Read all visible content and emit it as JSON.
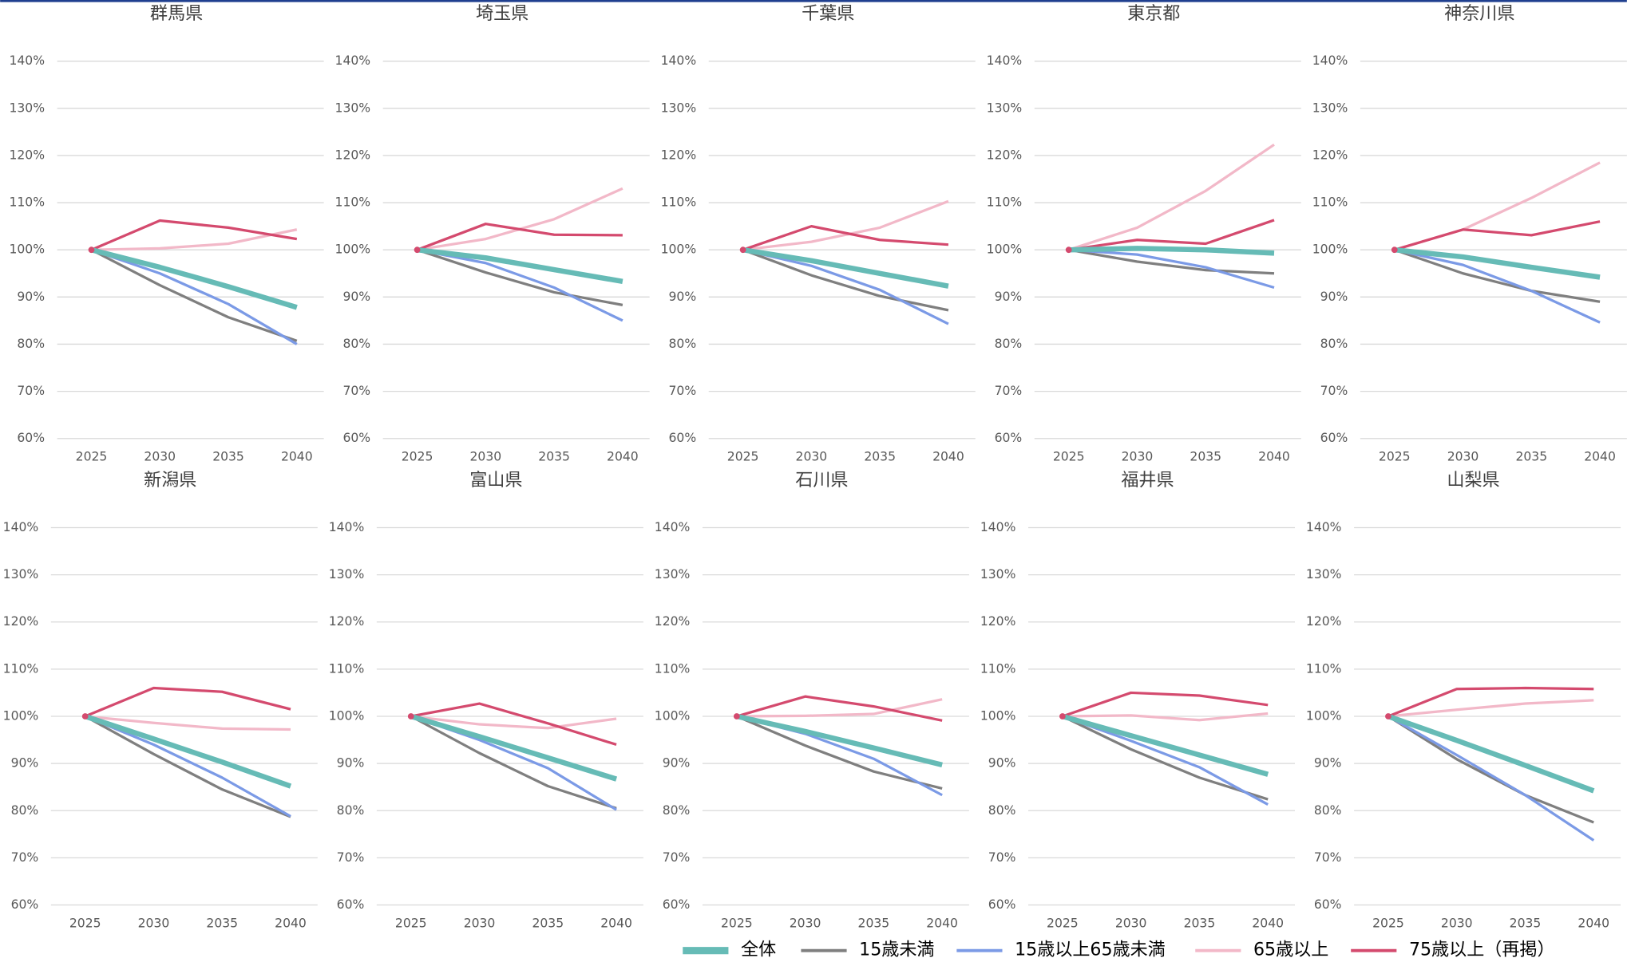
{
  "chart_data": [
    {
      "type": "line",
      "title": "群馬県",
      "categories": [
        "2025",
        "2030",
        "2035",
        "2040"
      ],
      "ylim": [
        60,
        140
      ],
      "yticks": [
        {
          "value": 60,
          "label": "60%"
        },
        {
          "value": 70,
          "label": "70%"
        },
        {
          "value": 80,
          "label": "80%"
        },
        {
          "value": 90,
          "label": "90%"
        },
        {
          "value": 100,
          "label": "100%"
        },
        {
          "value": 110,
          "label": "110%"
        },
        {
          "value": 120,
          "label": "120%"
        },
        {
          "value": 130,
          "label": "130%"
        },
        {
          "value": 140,
          "label": "140%"
        }
      ],
      "grid": true,
      "series": [
        {
          "name": "全体",
          "color": "#66bbb6",
          "values": [
            100,
            96.3,
            92.2,
            87.8
          ]
        },
        {
          "name": "15歳未満",
          "color": "#7f7f7f",
          "values": [
            100,
            92.5,
            85.7,
            80.7
          ]
        },
        {
          "name": "15歳以上65歳未満",
          "color": "#7b9ae6",
          "values": [
            100,
            95,
            88.5,
            80
          ]
        },
        {
          "name": "65歳以上",
          "color": "#f2b8c8",
          "values": [
            100,
            100.3,
            101.3,
            104.3
          ]
        },
        {
          "name": "75歳以上（再掲）",
          "color": "#d44a6e",
          "values": [
            100,
            106.2,
            104.7,
            102.3
          ]
        }
      ]
    },
    {
      "type": "line",
      "title": "埼玉県",
      "categories": [
        "2025",
        "2030",
        "2035",
        "2040"
      ],
      "ylim": [
        60,
        140
      ],
      "yticks": [
        {
          "value": 60,
          "label": "60%"
        },
        {
          "value": 70,
          "label": "70%"
        },
        {
          "value": 80,
          "label": "80%"
        },
        {
          "value": 90,
          "label": "90%"
        },
        {
          "value": 100,
          "label": "100%"
        },
        {
          "value": 110,
          "label": "110%"
        },
        {
          "value": 120,
          "label": "120%"
        },
        {
          "value": 130,
          "label": "130%"
        },
        {
          "value": 140,
          "label": "140%"
        }
      ],
      "grid": true,
      "series": [
        {
          "name": "全体",
          "color": "#66bbb6",
          "values": [
            100,
            98.3,
            95.8,
            93.3
          ]
        },
        {
          "name": "15歳未満",
          "color": "#7f7f7f",
          "values": [
            100,
            95.2,
            91,
            88.3
          ]
        },
        {
          "name": "15歳以上65歳未満",
          "color": "#7b9ae6",
          "values": [
            100,
            97.2,
            92,
            85
          ]
        },
        {
          "name": "65歳以上",
          "color": "#f2b8c8",
          "values": [
            100,
            102.3,
            106.5,
            113
          ]
        },
        {
          "name": "75歳以上（再掲）",
          "color": "#d44a6e",
          "values": [
            100,
            105.5,
            103.2,
            103.1
          ]
        }
      ]
    },
    {
      "type": "line",
      "title": "千葉県",
      "categories": [
        "2025",
        "2030",
        "2035",
        "2040"
      ],
      "ylim": [
        60,
        140
      ],
      "yticks": [
        {
          "value": 60,
          "label": "60%"
        },
        {
          "value": 70,
          "label": "70%"
        },
        {
          "value": 80,
          "label": "80%"
        },
        {
          "value": 90,
          "label": "90%"
        },
        {
          "value": 100,
          "label": "100%"
        },
        {
          "value": 110,
          "label": "110%"
        },
        {
          "value": 120,
          "label": "120%"
        },
        {
          "value": 130,
          "label": "130%"
        },
        {
          "value": 140,
          "label": "140%"
        }
      ],
      "grid": true,
      "series": [
        {
          "name": "全体",
          "color": "#66bbb6",
          "values": [
            100,
            97.7,
            95,
            92.3
          ]
        },
        {
          "name": "15歳未満",
          "color": "#7f7f7f",
          "values": [
            100,
            94.6,
            90.2,
            87.2
          ]
        },
        {
          "name": "15歳以上65歳未満",
          "color": "#7b9ae6",
          "values": [
            100,
            96.6,
            91.5,
            84.3
          ]
        },
        {
          "name": "65歳以上",
          "color": "#f2b8c8",
          "values": [
            100,
            101.7,
            104.7,
            110.3
          ]
        },
        {
          "name": "75歳以上（再掲）",
          "color": "#d44a6e",
          "values": [
            100,
            105,
            102.1,
            101.1
          ]
        }
      ]
    },
    {
      "type": "line",
      "title": "東京都",
      "categories": [
        "2025",
        "2030",
        "2035",
        "2040"
      ],
      "ylim": [
        60,
        140
      ],
      "yticks": [
        {
          "value": 60,
          "label": "60%"
        },
        {
          "value": 70,
          "label": "70%"
        },
        {
          "value": 80,
          "label": "80%"
        },
        {
          "value": 90,
          "label": "90%"
        },
        {
          "value": 100,
          "label": "100%"
        },
        {
          "value": 110,
          "label": "110%"
        },
        {
          "value": 120,
          "label": "120%"
        },
        {
          "value": 130,
          "label": "130%"
        },
        {
          "value": 140,
          "label": "140%"
        }
      ],
      "grid": true,
      "series": [
        {
          "name": "全体",
          "color": "#66bbb6",
          "values": [
            100,
            100.3,
            100,
            99.3
          ]
        },
        {
          "name": "15歳未満",
          "color": "#7f7f7f",
          "values": [
            100,
            97.5,
            95.7,
            95
          ]
        },
        {
          "name": "15歳以上65歳未満",
          "color": "#7b9ae6",
          "values": [
            100,
            99,
            96.3,
            92
          ]
        },
        {
          "name": "65歳以上",
          "color": "#f2b8c8",
          "values": [
            100,
            104.7,
            112.5,
            122.3
          ]
        },
        {
          "name": "75歳以上（再掲）",
          "color": "#d44a6e",
          "values": [
            100,
            102.1,
            101.3,
            106.3
          ]
        }
      ]
    },
    {
      "type": "line",
      "title": "神奈川県",
      "categories": [
        "2025",
        "2030",
        "2035",
        "2040"
      ],
      "ylim": [
        60,
        140
      ],
      "yticks": [
        {
          "value": 60,
          "label": "60%"
        },
        {
          "value": 70,
          "label": "70%"
        },
        {
          "value": 80,
          "label": "80%"
        },
        {
          "value": 90,
          "label": "90%"
        },
        {
          "value": 100,
          "label": "100%"
        },
        {
          "value": 110,
          "label": "110%"
        },
        {
          "value": 120,
          "label": "120%"
        },
        {
          "value": 130,
          "label": "130%"
        },
        {
          "value": 140,
          "label": "140%"
        }
      ],
      "grid": true,
      "series": [
        {
          "name": "全体",
          "color": "#66bbb6",
          "values": [
            100,
            98.5,
            96.3,
            94.2
          ]
        },
        {
          "name": "15歳未満",
          "color": "#7f7f7f",
          "values": [
            100,
            95,
            91.3,
            89
          ]
        },
        {
          "name": "15歳以上65歳未満",
          "color": "#7b9ae6",
          "values": [
            100,
            96.8,
            91.3,
            84.6
          ]
        },
        {
          "name": "65歳以上",
          "color": "#f2b8c8",
          "values": [
            100,
            104.3,
            111,
            118.5
          ]
        },
        {
          "name": "75歳以上（再掲）",
          "color": "#d44a6e",
          "values": [
            100,
            104.3,
            103.1,
            106
          ]
        }
      ]
    },
    {
      "type": "line",
      "title": "新潟県",
      "categories": [
        "2025",
        "2030",
        "2035",
        "2040"
      ],
      "ylim": [
        60,
        140
      ],
      "yticks": [
        {
          "value": 60,
          "label": "60%"
        },
        {
          "value": 70,
          "label": "70%"
        },
        {
          "value": 80,
          "label": "80%"
        },
        {
          "value": 90,
          "label": "90%"
        },
        {
          "value": 100,
          "label": "100%"
        },
        {
          "value": 110,
          "label": "110%"
        },
        {
          "value": 120,
          "label": "120%"
        },
        {
          "value": 130,
          "label": "130%"
        },
        {
          "value": 140,
          "label": "140%"
        }
      ],
      "grid": true,
      "series": [
        {
          "name": "全体",
          "color": "#66bbb6",
          "values": [
            100,
            95.2,
            90.3,
            85.2
          ]
        },
        {
          "name": "15歳未満",
          "color": "#7f7f7f",
          "values": [
            100,
            92,
            84.5,
            78.7
          ]
        },
        {
          "name": "15歳以上65歳未満",
          "color": "#7b9ae6",
          "values": [
            100,
            94,
            87,
            78.8
          ]
        },
        {
          "name": "65歳以上",
          "color": "#f2b8c8",
          "values": [
            100,
            98.6,
            97.4,
            97.2
          ]
        },
        {
          "name": "75歳以上（再掲）",
          "color": "#d44a6e",
          "values": [
            100,
            106,
            105.2,
            101.5
          ]
        }
      ]
    },
    {
      "type": "line",
      "title": "富山県",
      "categories": [
        "2025",
        "2030",
        "2035",
        "2040"
      ],
      "ylim": [
        60,
        140
      ],
      "yticks": [
        {
          "value": 60,
          "label": "60%"
        },
        {
          "value": 70,
          "label": "70%"
        },
        {
          "value": 80,
          "label": "80%"
        },
        {
          "value": 90,
          "label": "90%"
        },
        {
          "value": 100,
          "label": "100%"
        },
        {
          "value": 110,
          "label": "110%"
        },
        {
          "value": 120,
          "label": "120%"
        },
        {
          "value": 130,
          "label": "130%"
        },
        {
          "value": 140,
          "label": "140%"
        }
      ],
      "grid": true,
      "series": [
        {
          "name": "全体",
          "color": "#66bbb6",
          "values": [
            100,
            95.7,
            91.2,
            86.7
          ]
        },
        {
          "name": "15歳未満",
          "color": "#7f7f7f",
          "values": [
            100,
            92.2,
            85.2,
            80.5
          ]
        },
        {
          "name": "15歳以上65歳未満",
          "color": "#7b9ae6",
          "values": [
            100,
            95,
            89,
            80.2
          ]
        },
        {
          "name": "65歳以上",
          "color": "#f2b8c8",
          "values": [
            100,
            98.3,
            97.5,
            99.5
          ]
        },
        {
          "name": "75歳以上（再掲）",
          "color": "#d44a6e",
          "values": [
            100,
            102.7,
            98.5,
            94
          ]
        }
      ]
    },
    {
      "type": "line",
      "title": "石川県",
      "categories": [
        "2025",
        "2030",
        "2035",
        "2040"
      ],
      "ylim": [
        60,
        140
      ],
      "yticks": [
        {
          "value": 60,
          "label": "60%"
        },
        {
          "value": 70,
          "label": "70%"
        },
        {
          "value": 80,
          "label": "80%"
        },
        {
          "value": 90,
          "label": "90%"
        },
        {
          "value": 100,
          "label": "100%"
        },
        {
          "value": 110,
          "label": "110%"
        },
        {
          "value": 120,
          "label": "120%"
        },
        {
          "value": 130,
          "label": "130%"
        },
        {
          "value": 140,
          "label": "140%"
        }
      ],
      "grid": true,
      "series": [
        {
          "name": "全体",
          "color": "#66bbb6",
          "values": [
            100,
            96.8,
            93.3,
            89.7
          ]
        },
        {
          "name": "15歳未満",
          "color": "#7f7f7f",
          "values": [
            100,
            93.8,
            88.3,
            84.7
          ]
        },
        {
          "name": "15歳以上65歳未満",
          "color": "#7b9ae6",
          "values": [
            100,
            96.3,
            91,
            83.3
          ]
        },
        {
          "name": "65歳以上",
          "color": "#f2b8c8",
          "values": [
            100,
            100.1,
            100.5,
            103.6
          ]
        },
        {
          "name": "75歳以上（再掲）",
          "color": "#d44a6e",
          "values": [
            100,
            104.2,
            102.1,
            99.1
          ]
        }
      ]
    },
    {
      "type": "line",
      "title": "福井県",
      "categories": [
        "2025",
        "2030",
        "2035",
        "2040"
      ],
      "ylim": [
        60,
        140
      ],
      "yticks": [
        {
          "value": 60,
          "label": "60%"
        },
        {
          "value": 70,
          "label": "70%"
        },
        {
          "value": 80,
          "label": "80%"
        },
        {
          "value": 90,
          "label": "90%"
        },
        {
          "value": 100,
          "label": "100%"
        },
        {
          "value": 110,
          "label": "110%"
        },
        {
          "value": 120,
          "label": "120%"
        },
        {
          "value": 130,
          "label": "130%"
        },
        {
          "value": 140,
          "label": "140%"
        }
      ],
      "grid": true,
      "series": [
        {
          "name": "全体",
          "color": "#66bbb6",
          "values": [
            100,
            95.9,
            91.8,
            87.7
          ]
        },
        {
          "name": "15歳未満",
          "color": "#7f7f7f",
          "values": [
            100,
            93,
            87,
            82.4
          ]
        },
        {
          "name": "15歳以上65歳未満",
          "color": "#7b9ae6",
          "values": [
            100,
            94.8,
            89.2,
            81.3
          ]
        },
        {
          "name": "65歳以上",
          "color": "#f2b8c8",
          "values": [
            100,
            100.2,
            99.2,
            100.6
          ]
        },
        {
          "name": "75歳以上（再掲）",
          "color": "#d44a6e",
          "values": [
            100,
            105,
            104.4,
            102.4
          ]
        }
      ]
    },
    {
      "type": "line",
      "title": "山梨県",
      "categories": [
        "2025",
        "2030",
        "2035",
        "2040"
      ],
      "ylim": [
        60,
        140
      ],
      "yticks": [
        {
          "value": 60,
          "label": "60%"
        },
        {
          "value": 70,
          "label": "70%"
        },
        {
          "value": 80,
          "label": "80%"
        },
        {
          "value": 90,
          "label": "90%"
        },
        {
          "value": 100,
          "label": "100%"
        },
        {
          "value": 110,
          "label": "110%"
        },
        {
          "value": 120,
          "label": "120%"
        },
        {
          "value": 130,
          "label": "130%"
        },
        {
          "value": 140,
          "label": "140%"
        }
      ],
      "grid": true,
      "series": [
        {
          "name": "全体",
          "color": "#66bbb6",
          "values": [
            100,
            94.9,
            89.6,
            84.2
          ]
        },
        {
          "name": "15歳未満",
          "color": "#7f7f7f",
          "values": [
            100,
            90.9,
            83.3,
            77.5
          ]
        },
        {
          "name": "15歳以上65歳未満",
          "color": "#7b9ae6",
          "values": [
            100,
            91.8,
            83.3,
            73.7
          ]
        },
        {
          "name": "65歳以上",
          "color": "#f2b8c8",
          "values": [
            100,
            101.4,
            102.7,
            103.4
          ]
        },
        {
          "name": "75歳以上（再掲）",
          "color": "#d44a6e",
          "values": [
            100,
            105.8,
            106,
            105.8
          ]
        }
      ]
    }
  ]
}
